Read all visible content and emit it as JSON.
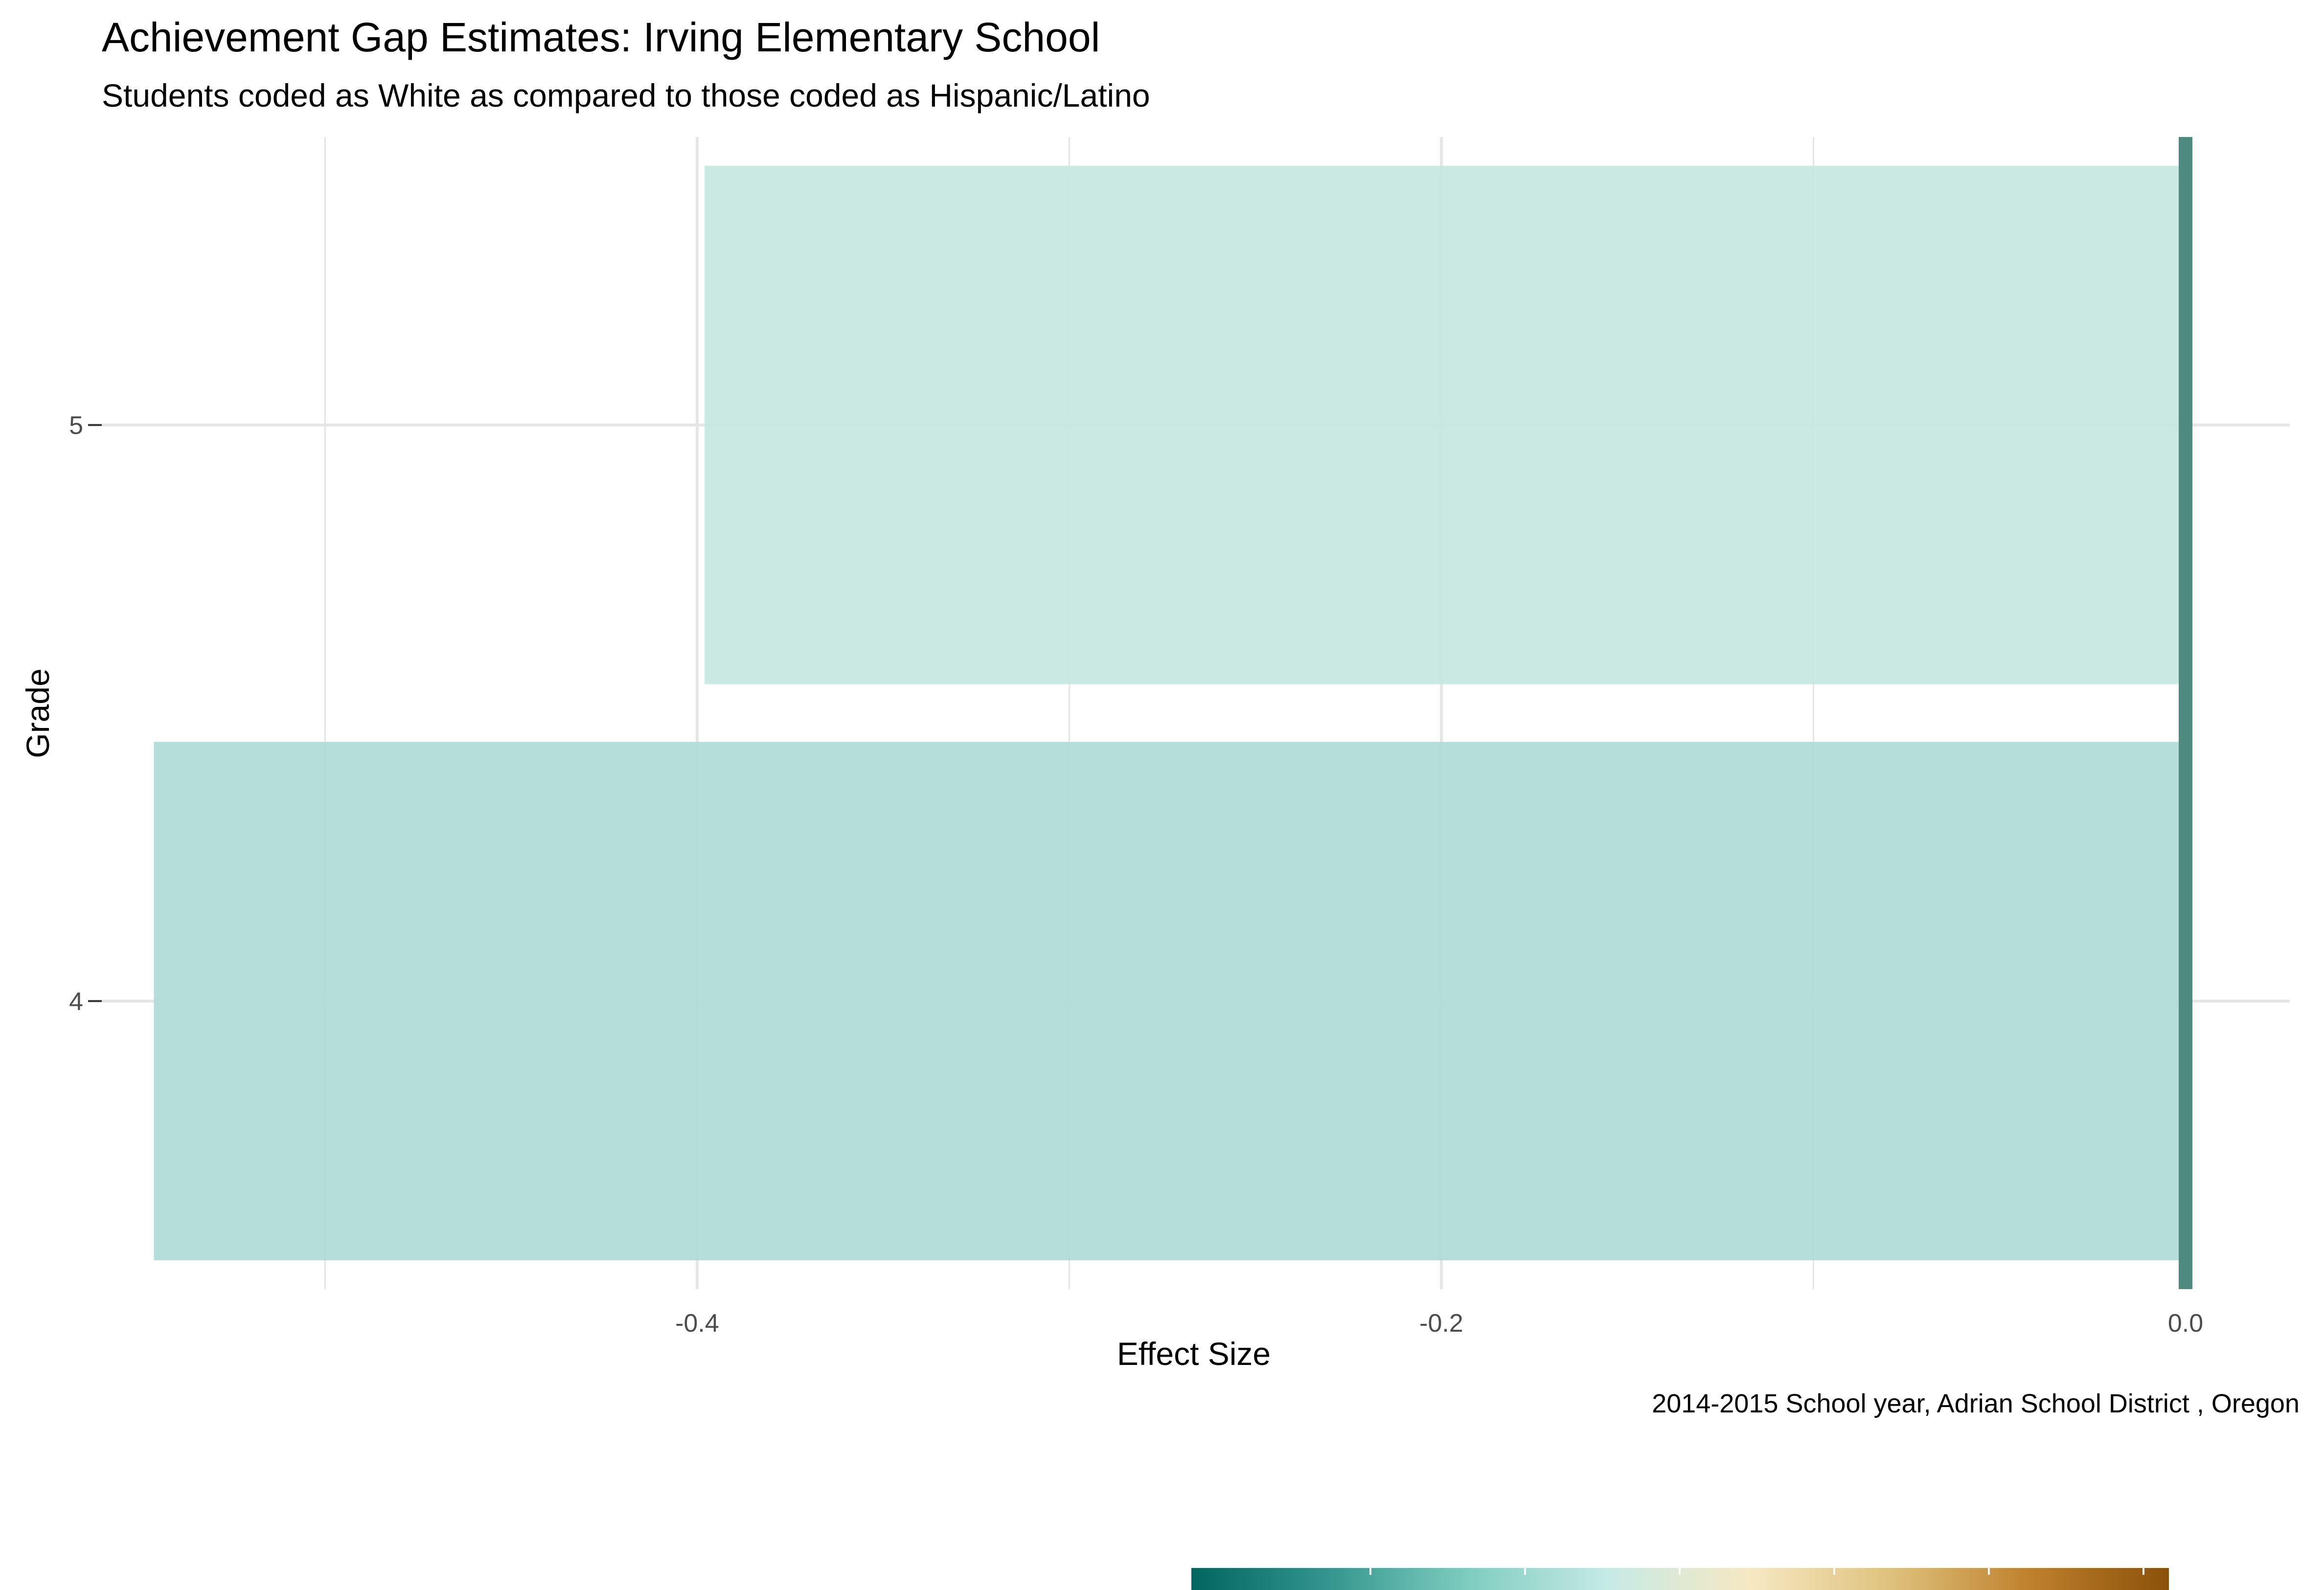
{
  "chart_data": {
    "type": "bar",
    "orientation": "horizontal",
    "title": "Achievement Gap Estimates: Irving Elementary School",
    "subtitle": "Students coded as White as compared to those coded as Hispanic/Latino",
    "caption": "2014-2015 School year,  Adrian School District , Oregon",
    "xlabel": "Effect Size",
    "ylabel": "Grade",
    "categories": [
      "4",
      "5"
    ],
    "values": [
      -0.546,
      -0.398
    ],
    "xlim": [
      -0.56,
      0.028
    ],
    "x_ticks": [
      -0.4,
      -0.2,
      0.0
    ],
    "x_tick_labels": [
      "-0.4",
      "-0.2",
      "0.0"
    ],
    "reference_line": 0.0,
    "grid": true,
    "legend": "bottom",
    "colors": {
      "bar_grade_4": "#afdbd6",
      "bar_grade_5": "#c4e7e0",
      "reference_line": "#4e8a80",
      "grid": "#e5e5e5"
    },
    "legend_gradient": [
      "#01665e",
      "#35978f",
      "#80cdc1",
      "#c7eae5",
      "#f6e8c3",
      "#dfc27d",
      "#bf812d",
      "#8c510a"
    ]
  }
}
